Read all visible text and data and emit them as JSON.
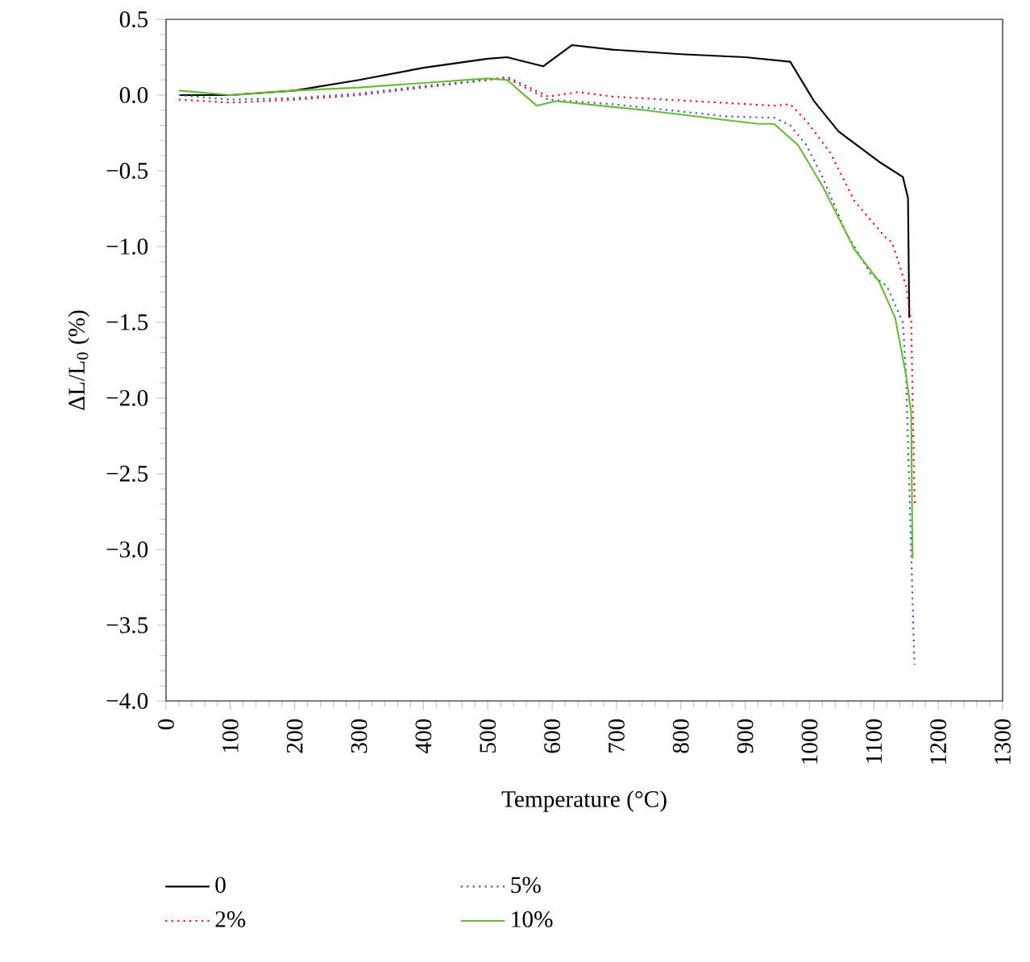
{
  "chart_data": {
    "type": "line",
    "xlabel": "Temperature (°C)",
    "ylabel": "ΔL/L$_{0}$ (%)",
    "xlim": [
      0,
      1300
    ],
    "ylim": [
      -4.0,
      0.5
    ],
    "xticks": [
      0,
      100,
      200,
      300,
      400,
      500,
      600,
      700,
      800,
      900,
      1000,
      1100,
      1200,
      1300
    ],
    "yticks": [
      {
        "value": 0.5,
        "label": "0.5"
      },
      {
        "value": 0,
        "label": "0.0"
      },
      {
        "value": -0.5,
        "label": "−0.5"
      },
      {
        "value": -1.0,
        "label": "−1.0"
      },
      {
        "value": -1.5,
        "label": "−1.5"
      },
      {
        "value": -2.0,
        "label": "−2.0"
      },
      {
        "value": -2.5,
        "label": "−2.5"
      },
      {
        "value": -3.0,
        "label": "−3.0"
      },
      {
        "value": -3.5,
        "label": "−3.5"
      },
      {
        "value": -4.0,
        "label": "−4.0"
      }
    ],
    "grid": false,
    "legend": "bottom left",
    "marker": "none",
    "series": [
      {
        "name": "0",
        "color": "#000000",
        "line_style": "solid",
        "x": [
          20,
          100,
          200,
          300,
          400,
          500,
          530,
          586,
          631,
          694,
          800,
          900,
          970,
          1007,
          1045,
          1108,
          1145,
          1153,
          1155
        ],
        "values": [
          0.0,
          0.0,
          0.03,
          0.1,
          0.18,
          0.24,
          0.25,
          0.19,
          0.33,
          0.3,
          0.27,
          0.25,
          0.22,
          -0.04,
          -0.24,
          -0.44,
          -0.54,
          -0.68,
          -1.47
        ]
      },
      {
        "name": "2%",
        "color": "#ff0000",
        "line_style": "dotted",
        "x": [
          20,
          100,
          200,
          300,
          400,
          500,
          530,
          594,
          640,
          694,
          820,
          945,
          970,
          995,
          1032,
          1070,
          1120,
          1128,
          1150,
          1158,
          1163,
          1164
        ],
        "values": [
          -0.03,
          -0.05,
          -0.03,
          0.0,
          0.05,
          0.1,
          0.12,
          -0.01,
          0.02,
          -0.01,
          -0.04,
          -0.07,
          -0.06,
          -0.17,
          -0.38,
          -0.7,
          -0.95,
          -0.97,
          -1.26,
          -1.5,
          -2.64,
          -2.7
        ]
      },
      {
        "name": "5%",
        "color": "#3355cc",
        "line_style": "dotted",
        "x": [
          20,
          100,
          200,
          300,
          400,
          500,
          530,
          594,
          694,
          870,
          945,
          970,
          995,
          1020,
          1057,
          1095,
          1120,
          1145,
          1150,
          1163
        ],
        "values": [
          0.0,
          -0.03,
          -0.02,
          0.01,
          0.06,
          0.1,
          0.11,
          -0.03,
          -0.06,
          -0.14,
          -0.15,
          -0.2,
          -0.33,
          -0.54,
          -0.91,
          -1.18,
          -1.26,
          -1.5,
          -1.85,
          -3.76
        ]
      },
      {
        "name": "10%",
        "color": "#66bb33",
        "line_style": "solid",
        "x": [
          20,
          100,
          200,
          300,
          400,
          500,
          530,
          576,
          606,
          744,
          920,
          945,
          982,
          1020,
          1070,
          1108,
          1133,
          1150,
          1158,
          1160
        ],
        "values": [
          0.03,
          0.0,
          0.03,
          0.05,
          0.08,
          0.11,
          0.1,
          -0.07,
          -0.04,
          -0.1,
          -0.19,
          -0.19,
          -0.33,
          -0.6,
          -1.02,
          -1.23,
          -1.47,
          -1.85,
          -2.1,
          -3.06
        ]
      }
    ]
  }
}
